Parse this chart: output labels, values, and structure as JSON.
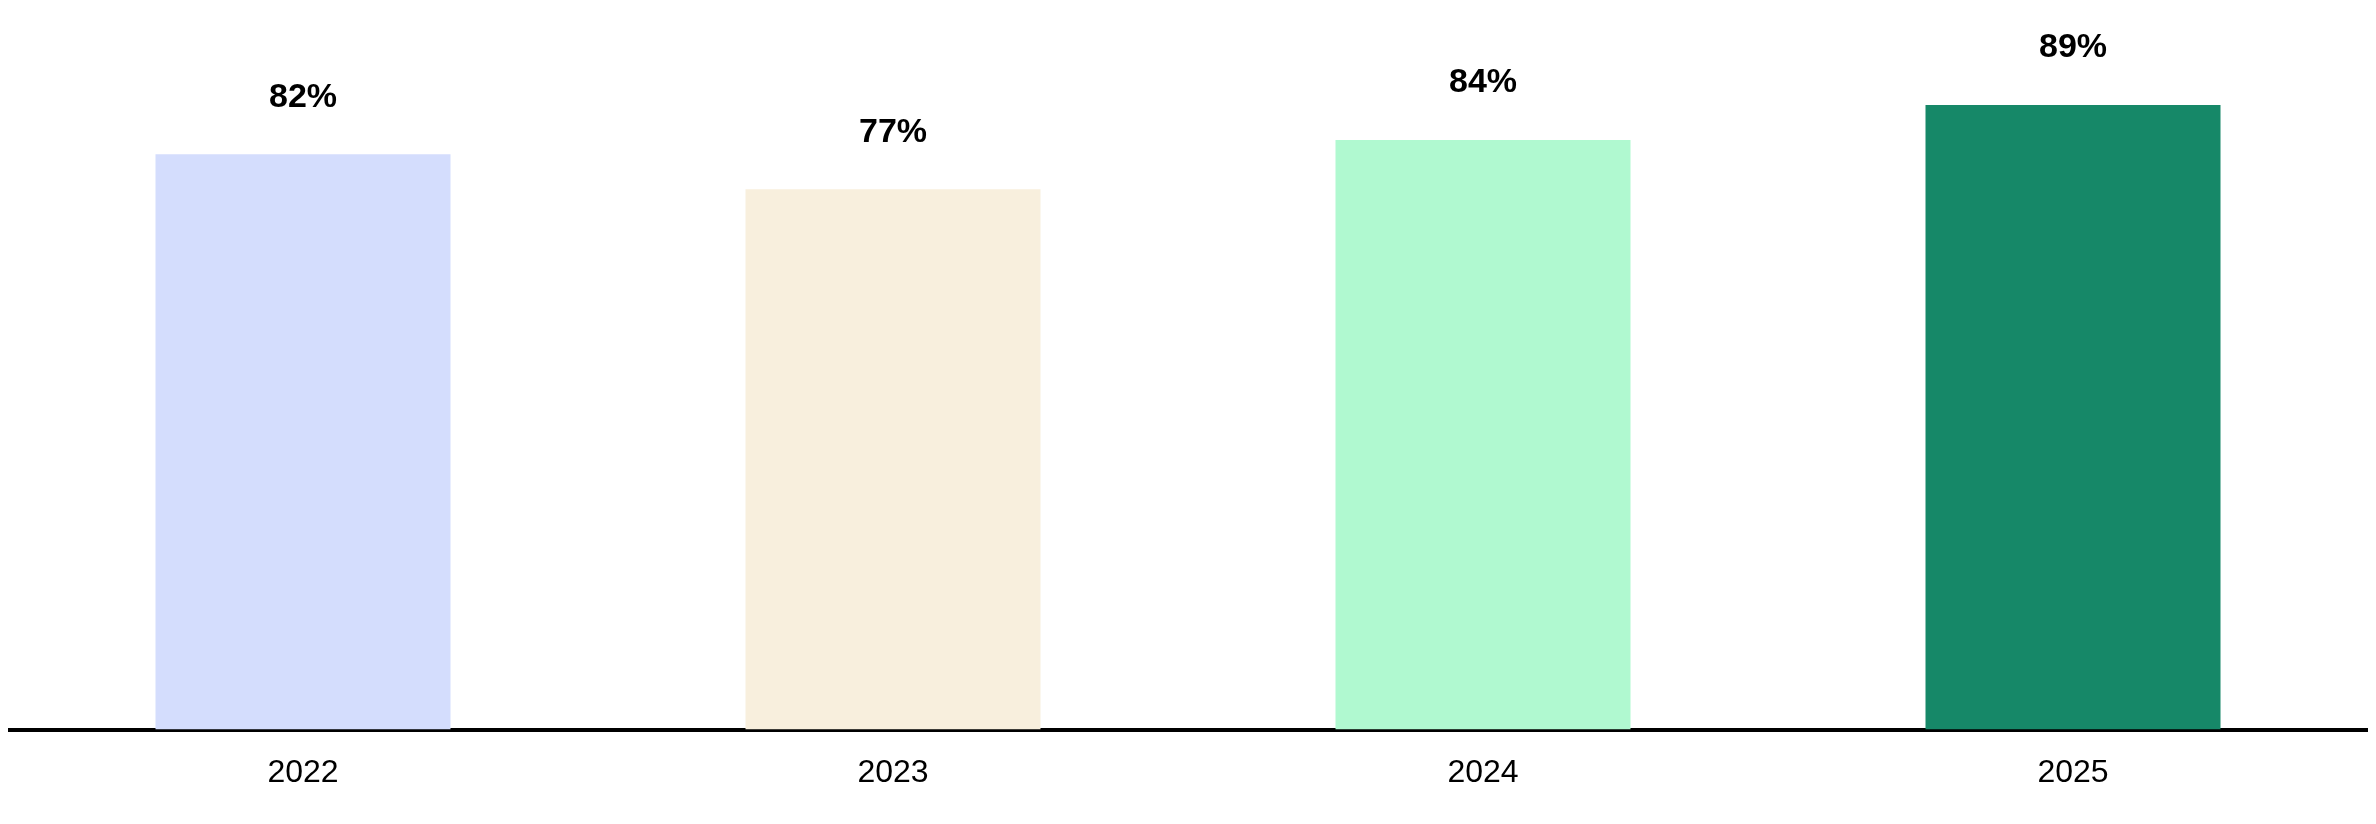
{
  "chart_data": {
    "type": "bar",
    "categories": [
      "2022",
      "2023",
      "2024",
      "2025"
    ],
    "values": [
      82,
      77,
      84,
      89
    ],
    "colors": [
      "#d4ddfd",
      "#f8efdd",
      "#b0f9d0",
      "#168868"
    ],
    "value_labels": [
      "82%",
      "77%",
      "84%",
      "89%"
    ],
    "grid": false,
    "legend": false
  }
}
